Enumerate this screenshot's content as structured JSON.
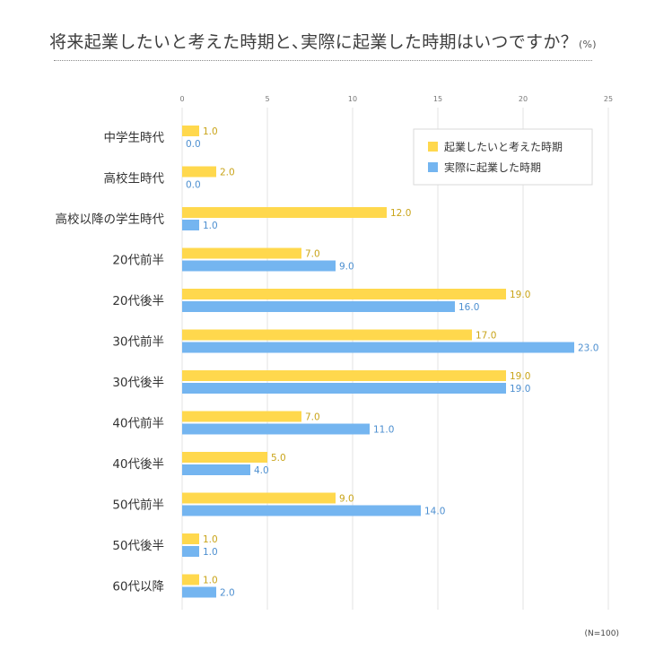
{
  "chart_data": {
    "type": "bar",
    "orientation": "horizontal",
    "title": "将来起業したいと考えた時期と､実際に起業した時期はいつですか？",
    "unit": "(%)",
    "categories": [
      "中学生時代",
      "高校生時代",
      "高校以降の学生時代",
      "20代前半",
      "20代後半",
      "30代前半",
      "30代後半",
      "40代前半",
      "40代後半",
      "50代前半",
      "50代後半",
      "60代以降"
    ],
    "series": [
      {
        "name": "起業したいと考えた時期",
        "color": "#ffd84d",
        "label_color": "#c9a419",
        "values": [
          1.0,
          2.0,
          12.0,
          7.0,
          19.0,
          17.0,
          19.0,
          7.0,
          5.0,
          9.0,
          1.0,
          1.0
        ]
      },
      {
        "name": "実際に起業した時期",
        "color": "#74b5f0",
        "label_color": "#4d8fd0",
        "values": [
          0.0,
          0.0,
          1.0,
          9.0,
          16.0,
          23.0,
          19.0,
          11.0,
          4.0,
          14.0,
          1.0,
          2.0
        ]
      }
    ],
    "xlim": [
      0,
      25
    ],
    "xticks": [
      0,
      5,
      10,
      15,
      20,
      25
    ],
    "grid": true,
    "legend_position": "top-right",
    "note": "(N=100)"
  }
}
